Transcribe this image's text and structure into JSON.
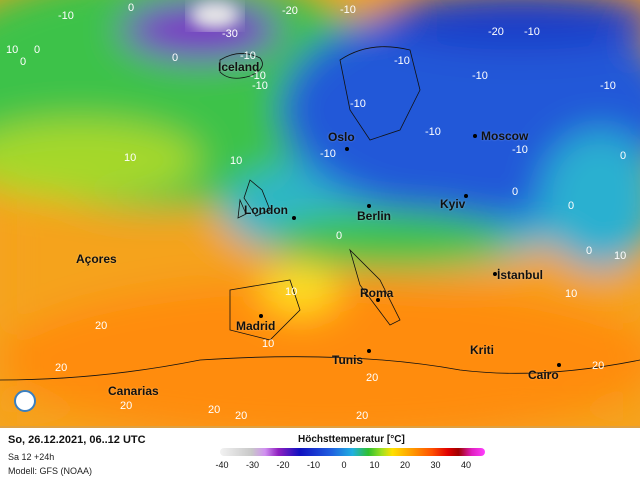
{
  "map": {
    "cities": [
      {
        "name": "Iceland"
      },
      {
        "name": "Oslo"
      },
      {
        "name": "Moscow"
      },
      {
        "name": "London"
      },
      {
        "name": "Berlin"
      },
      {
        "name": "Kyiv"
      },
      {
        "name": "Açores"
      },
      {
        "name": "İstanbul"
      },
      {
        "name": "Madrid"
      },
      {
        "name": "Roma"
      },
      {
        "name": "Tunis"
      },
      {
        "name": "Kriti"
      },
      {
        "name": "Canarias"
      },
      {
        "name": "Cairo"
      }
    ],
    "contour_labels": [
      "-10",
      "0",
      "-20",
      "-10",
      "-30",
      "-10",
      "0",
      "-10",
      "0",
      "-20",
      "-10",
      "-10",
      "-10",
      "0",
      "10",
      "10",
      "-10",
      "-10",
      "-10",
      "-10",
      "0",
      "0",
      "0",
      "10",
      "10",
      "10",
      "20",
      "20",
      "20",
      "20",
      "20",
      "20",
      "20",
      "10",
      "0",
      "0",
      "10",
      "-10",
      "-10",
      "20"
    ]
  },
  "footer": {
    "date": "So, 26.12.2021, 06..12 UTC",
    "run": "Sa 12 +24h",
    "model": "Modell: GFS (NOAA)",
    "legend_title": "Höchsttemperatur [°C]",
    "legend_ticks": [
      "-40",
      "-30",
      "-20",
      "-10",
      "0",
      "10",
      "20",
      "30",
      "40"
    ]
  },
  "colors": {
    "warm": "#f5a31d",
    "mild": "#3cc24a",
    "cold": "#2458d8",
    "frost": "#9020c0"
  }
}
